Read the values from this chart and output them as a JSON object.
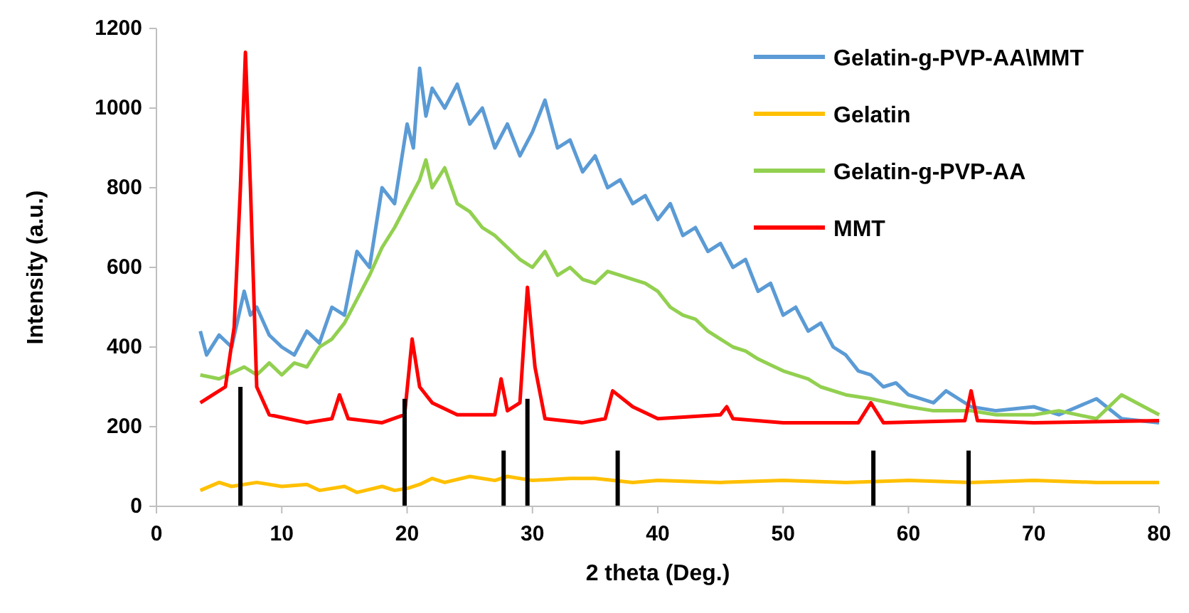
{
  "chart_data": {
    "type": "line",
    "xlabel": "2 theta (Deg.)",
    "ylabel": "Intensity (a.u.)",
    "xlim": [
      0,
      80
    ],
    "ylim": [
      0,
      1200
    ],
    "xticks": [
      0,
      10,
      20,
      30,
      40,
      50,
      60,
      70,
      80
    ],
    "yticks": [
      0,
      200,
      400,
      600,
      800,
      1000,
      1200
    ],
    "grid": false,
    "legend": "top right",
    "marker": "none",
    "line_style": "solid",
    "series": [
      {
        "name": "Gelatin-g-PVP-AA\\MMT",
        "color": "#5b9bd5",
        "x": [
          3.5,
          4,
          5,
          6,
          7,
          7.5,
          8,
          9,
          10,
          11,
          12,
          13,
          14,
          15,
          16,
          17,
          18,
          19,
          20,
          20.5,
          21,
          21.5,
          22,
          23,
          24,
          25,
          26,
          27,
          28,
          29,
          30,
          31,
          32,
          33,
          34,
          35,
          36,
          37,
          38,
          39,
          40,
          41,
          42,
          43,
          44,
          45,
          46,
          47,
          48,
          49,
          50,
          51,
          52,
          53,
          54,
          55,
          56,
          57,
          58,
          59,
          60,
          62,
          63,
          65,
          67,
          70,
          72,
          75,
          77,
          80
        ],
        "values": [
          440,
          380,
          430,
          400,
          540,
          480,
          500,
          430,
          400,
          380,
          440,
          410,
          500,
          480,
          640,
          600,
          800,
          760,
          960,
          900,
          1100,
          980,
          1050,
          1000,
          1060,
          960,
          1000,
          900,
          960,
          880,
          940,
          1020,
          900,
          920,
          840,
          880,
          800,
          820,
          760,
          780,
          720,
          760,
          680,
          700,
          640,
          660,
          600,
          620,
          540,
          560,
          480,
          500,
          440,
          460,
          400,
          380,
          340,
          330,
          300,
          310,
          280,
          260,
          290,
          250,
          240,
          250,
          230,
          270,
          220,
          210
        ]
      },
      {
        "name": "Gelatin",
        "color": "#ffc000",
        "x": [
          3.5,
          5,
          6,
          8,
          10,
          12,
          13,
          15,
          16,
          18,
          19,
          20,
          21,
          22,
          23,
          25,
          27,
          28,
          30,
          33,
          35,
          38,
          40,
          45,
          50,
          55,
          60,
          65,
          70,
          75,
          80
        ],
        "values": [
          40,
          60,
          50,
          60,
          50,
          55,
          40,
          50,
          35,
          50,
          40,
          45,
          55,
          70,
          60,
          75,
          65,
          75,
          65,
          70,
          70,
          60,
          65,
          60,
          65,
          60,
          65,
          60,
          65,
          60,
          60
        ]
      },
      {
        "name": "Gelatin-g-PVP-AA",
        "color": "#92d050",
        "x": [
          3.5,
          5,
          7,
          8,
          9,
          10,
          11,
          12,
          13,
          14,
          15,
          16,
          17,
          18,
          19,
          20,
          21,
          21.5,
          22,
          23,
          24,
          25,
          26,
          27,
          28,
          29,
          30,
          31,
          32,
          33,
          34,
          35,
          36,
          37,
          38,
          39,
          40,
          41,
          42,
          43,
          44,
          45,
          46,
          47,
          48,
          50,
          52,
          53,
          55,
          57,
          60,
          62,
          65,
          67,
          70,
          72,
          75,
          77,
          80
        ],
        "values": [
          330,
          320,
          350,
          330,
          360,
          330,
          360,
          350,
          400,
          420,
          460,
          520,
          580,
          650,
          700,
          760,
          820,
          870,
          800,
          850,
          760,
          740,
          700,
          680,
          650,
          620,
          600,
          640,
          580,
          600,
          570,
          560,
          590,
          580,
          570,
          560,
          540,
          500,
          480,
          470,
          440,
          420,
          400,
          390,
          370,
          340,
          320,
          300,
          280,
          270,
          250,
          240,
          240,
          230,
          230,
          240,
          220,
          280,
          230
        ]
      },
      {
        "name": "MMT",
        "color": "#ff0000",
        "x": [
          3.5,
          4.5,
          5.5,
          6.2,
          6.7,
          7.1,
          7.5,
          8,
          9,
          12,
          14,
          14.6,
          15.3,
          18,
          19.8,
          20.4,
          21,
          22,
          24,
          27,
          27.5,
          28,
          29,
          29.6,
          30.2,
          31,
          34,
          35.8,
          36.4,
          38,
          40,
          45,
          45.5,
          46,
          50,
          56,
          57,
          58,
          64.5,
          65,
          65.5,
          70,
          80
        ],
        "values": [
          260,
          280,
          300,
          450,
          800,
          1140,
          800,
          300,
          230,
          210,
          220,
          280,
          220,
          210,
          230,
          420,
          300,
          260,
          230,
          230,
          320,
          240,
          260,
          550,
          350,
          220,
          210,
          220,
          290,
          250,
          220,
          230,
          250,
          220,
          210,
          210,
          260,
          210,
          215,
          290,
          215,
          210,
          215
        ]
      },
      {
        "type": "bar",
        "color": "#000000",
        "x": [
          6.7,
          19.8,
          27.7,
          29.6,
          36.8,
          57.2,
          64.8
        ],
        "values": [
          300,
          270,
          140,
          270,
          140,
          140,
          140
        ]
      }
    ]
  }
}
